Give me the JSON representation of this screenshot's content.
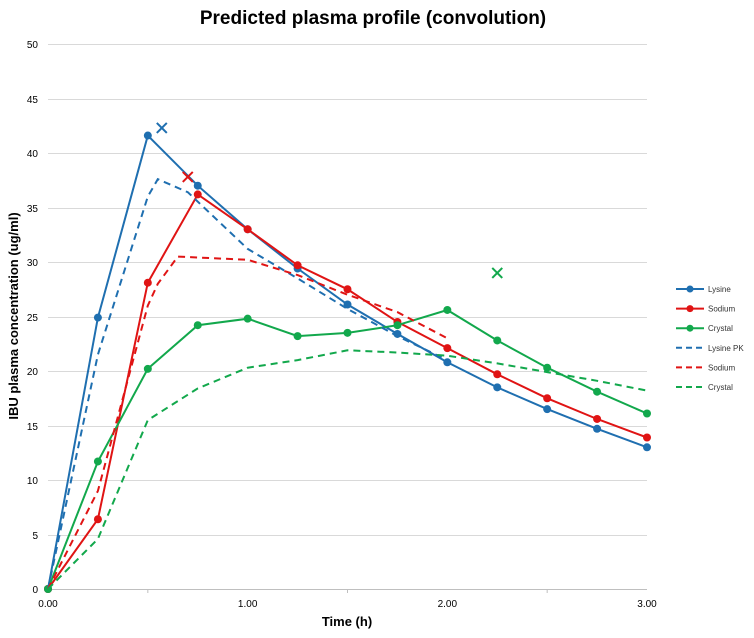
{
  "chart_data": {
    "type": "line",
    "title": "Predicted plasma profile (convolution)",
    "xlabel": "Time (h)",
    "ylabel": "IBU plasma concentration (ug/ml)",
    "xlim": [
      0,
      3
    ],
    "ylim": [
      0,
      50
    ],
    "x_ticks": [
      "0.00",
      "1.00",
      "2.00",
      "3.00"
    ],
    "y_ticks": [
      "0",
      "5",
      "10",
      "15",
      "20",
      "25",
      "30",
      "35",
      "40",
      "45",
      "50"
    ],
    "grid": true,
    "legend_position": "right",
    "series": [
      {
        "name": "Lysine",
        "color": "#1f6fb0",
        "style": "solid",
        "marker": "circle",
        "x": [
          0,
          0.25,
          0.5,
          0.75,
          1.0,
          1.25,
          1.5,
          1.75,
          2.0,
          2.25,
          2.5,
          2.75,
          3.0
        ],
        "y": [
          0,
          24.9,
          41.6,
          37.0,
          33.0,
          29.4,
          26.1,
          23.4,
          20.8,
          18.5,
          16.5,
          14.7,
          13.0
        ]
      },
      {
        "name": "Sodium",
        "color": "#e01414",
        "style": "solid",
        "marker": "circle",
        "x": [
          0,
          0.25,
          0.5,
          0.75,
          1.0,
          1.25,
          1.5,
          1.75,
          2.0,
          2.25,
          2.5,
          2.75,
          3.0
        ],
        "y": [
          0,
          6.4,
          28.1,
          36.2,
          33.0,
          29.7,
          27.5,
          24.5,
          22.1,
          19.7,
          17.5,
          15.6,
          13.9
        ]
      },
      {
        "name": "Crystal",
        "color": "#12a84c",
        "style": "solid",
        "marker": "circle",
        "x": [
          0,
          0.25,
          0.5,
          0.75,
          1.0,
          1.25,
          1.5,
          1.75,
          2.0,
          2.25,
          2.5,
          2.75,
          3.0
        ],
        "y": [
          0,
          11.7,
          20.2,
          24.2,
          24.8,
          23.2,
          23.5,
          24.2,
          25.6,
          22.8,
          20.3,
          18.1,
          16.1
        ]
      },
      {
        "name": "Lysine PK",
        "color": "#1f6fb0",
        "style": "dashed",
        "marker": "none",
        "x": [
          0,
          0.25,
          0.5,
          0.55,
          0.7,
          1.0,
          1.25,
          1.5,
          1.75,
          2.0
        ],
        "y": [
          0,
          21.5,
          36.0,
          37.6,
          36.4,
          31.2,
          28.5,
          25.7,
          23.2,
          21.0
        ]
      },
      {
        "name": "Sodium",
        "color": "#e01414",
        "style": "dashed",
        "marker": "none",
        "x": [
          0,
          0.25,
          0.5,
          0.55,
          0.65,
          1.0,
          1.25,
          1.5,
          1.75,
          2.0
        ],
        "y": [
          0,
          9.0,
          26.0,
          28.0,
          30.5,
          30.2,
          28.8,
          27.0,
          25.4,
          23.0
        ]
      },
      {
        "name": "Crystal",
        "color": "#12a84c",
        "style": "dashed",
        "marker": "none",
        "x": [
          0,
          0.25,
          0.5,
          0.75,
          1.0,
          1.25,
          1.5,
          1.75,
          2.0,
          2.25,
          2.5,
          2.75,
          3.0
        ],
        "y": [
          0,
          4.6,
          15.5,
          18.4,
          20.3,
          21.0,
          21.9,
          21.7,
          21.4,
          20.7,
          19.9,
          19.1,
          18.2
        ]
      }
    ],
    "markers_x": [
      {
        "color": "#1f6fb0",
        "x": 0.57,
        "y": 42.3
      },
      {
        "color": "#e01414",
        "x": 0.7,
        "y": 37.8
      },
      {
        "color": "#12a84c",
        "x": 2.25,
        "y": 29.0
      }
    ]
  }
}
